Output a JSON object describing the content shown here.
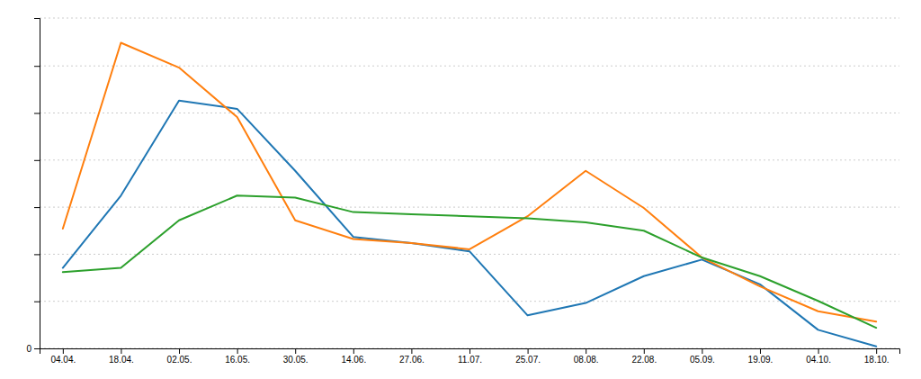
{
  "chart_data": {
    "type": "line",
    "categories": [
      "04.04.",
      "18.04.",
      "02.05.",
      "16.05.",
      "30.05.",
      "14.06.",
      "27.06.",
      "11.07.",
      "25.07.",
      "08.08.",
      "22.08.",
      "05.09.",
      "19.09.",
      "04.10.",
      "18.10."
    ],
    "series": [
      {
        "values": [
          195,
          370,
          600,
          580,
          430,
          270,
          255,
          235,
          80,
          110,
          175,
          215,
          155,
          45,
          5
        ]
      },
      {
        "values": [
          290,
          740,
          680,
          560,
          310,
          265,
          255,
          240,
          320,
          430,
          340,
          220,
          150,
          90,
          65
        ]
      },
      {
        "values": [
          185,
          195,
          310,
          370,
          365,
          330,
          325,
          320,
          315,
          305,
          285,
          220,
          175,
          115,
          50
        ]
      }
    ],
    "ylim": [
      0,
      800
    ],
    "yticks": [
      0,
      {
        "value": 114,
        "label": null
      },
      {
        "value": 228,
        "label": null
      },
      {
        "value": 342,
        "label": null
      },
      {
        "value": 456,
        "label": null
      },
      {
        "value": 570,
        "label": null
      },
      {
        "value": 684,
        "label": null
      },
      {
        "value": 800,
        "label": null
      }
    ],
    "grid": true
  }
}
